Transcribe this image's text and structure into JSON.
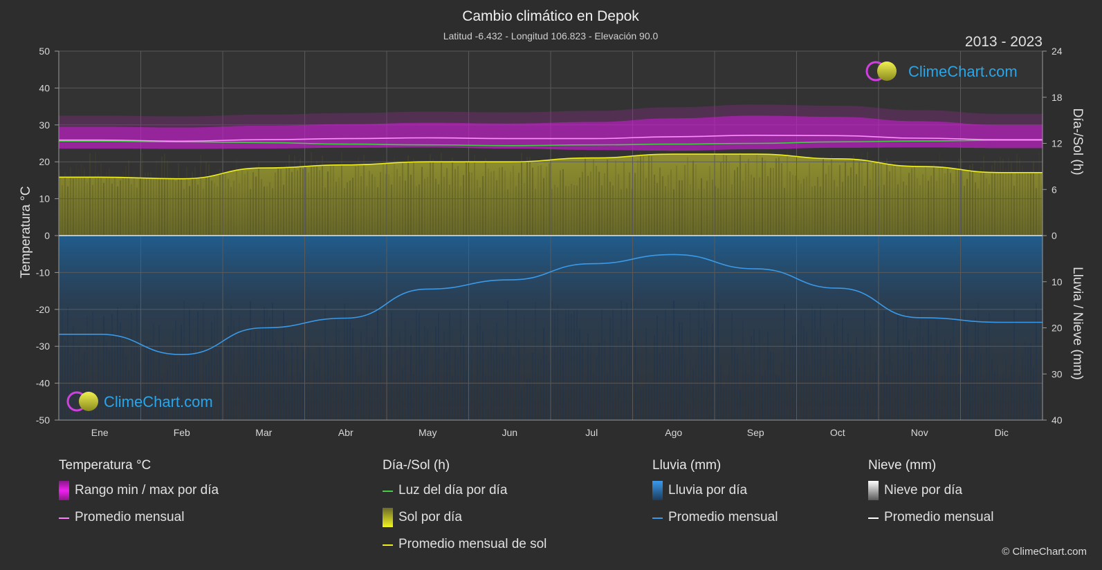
{
  "header": {
    "title": "Cambio climático en Depok",
    "subtitle": "Latitud -6.432 - Longitud 106.823 - Elevación 90.0",
    "period": "2013 - 2023"
  },
  "brand": {
    "name": "ClimeChart.com",
    "copyright": "© ClimeChart.com"
  },
  "colors": {
    "background": "#2d2d2d",
    "temp_range": "#e020e0",
    "temp_avg": "#ff80ff",
    "daylight": "#40d040",
    "sun_fill": "#c8c832",
    "sun_avg": "#f0f020",
    "rain_fill": "#2a7ab8",
    "rain_avg": "#3a9ae8",
    "snow": "#ffffff"
  },
  "chart_data": {
    "type": "area",
    "months": [
      "Ene",
      "Feb",
      "Mar",
      "Abr",
      "May",
      "Jun",
      "Jul",
      "Ago",
      "Sep",
      "Oct",
      "Nov",
      "Dic"
    ],
    "y_left": {
      "label": "Temperatura °C",
      "range": [
        -50,
        50
      ],
      "ticks": [
        50,
        40,
        30,
        20,
        10,
        0,
        -10,
        -20,
        -30,
        -40,
        -50
      ]
    },
    "y_right_top": {
      "label": "Día-/Sol (h)",
      "range": [
        0,
        24
      ],
      "ticks": [
        24,
        18,
        12,
        6,
        0
      ]
    },
    "y_right_bottom": {
      "label": "Lluvia / Nieve (mm)",
      "range": [
        0,
        40
      ],
      "ticks": [
        0,
        10,
        20,
        30,
        40
      ]
    },
    "grid": true,
    "series": [
      {
        "name": "Rango min / max por día",
        "kind": "band",
        "unit": "°C",
        "max": [
          29.5,
          29.3,
          29.8,
          30.2,
          30.6,
          30.4,
          30.8,
          31.8,
          32.5,
          32.2,
          31.0,
          30.0
        ],
        "min": [
          23.6,
          23.5,
          23.6,
          23.8,
          23.9,
          23.6,
          23.2,
          23.0,
          23.4,
          23.8,
          23.9,
          23.7
        ]
      },
      {
        "name": "Promedio mensual",
        "kind": "line",
        "unit": "°C",
        "values": [
          25.9,
          25.6,
          26.0,
          26.3,
          26.5,
          26.3,
          26.3,
          26.8,
          27.2,
          27.1,
          26.4,
          26.0
        ]
      },
      {
        "name": "Luz del día por día",
        "kind": "line",
        "unit": "h",
        "values": [
          12.3,
          12.2,
          12.1,
          11.9,
          11.8,
          11.7,
          11.8,
          11.9,
          12.0,
          12.2,
          12.3,
          12.4
        ]
      },
      {
        "name": "Promedio mensual de sol",
        "kind": "line",
        "unit": "h",
        "values": [
          7.6,
          7.4,
          8.8,
          9.2,
          9.6,
          9.6,
          10.1,
          10.6,
          10.6,
          10.0,
          9.0,
          8.2
        ]
      },
      {
        "name": "Promedio mensual",
        "kind": "line",
        "unit": "mm",
        "values": [
          21.4,
          25.8,
          20.0,
          17.9,
          11.6,
          9.6,
          6.1,
          4.1,
          7.2,
          11.4,
          17.8,
          18.8
        ]
      }
    ]
  },
  "legend": [
    {
      "header": "Temperatura °C",
      "items": [
        {
          "label": "Rango min / max por día",
          "swatch": "box",
          "color": "#e020e0"
        },
        {
          "label": "Promedio mensual",
          "swatch": "line",
          "color": "#ff80ff"
        }
      ]
    },
    {
      "header": "Día-/Sol (h)",
      "items": [
        {
          "label": "Luz del día por día",
          "swatch": "line",
          "color": "#40d040"
        },
        {
          "label": "Sol por día",
          "swatch": "box",
          "color": "#c8c832"
        },
        {
          "label": "Promedio mensual de sol",
          "swatch": "line",
          "color": "#f0f020"
        }
      ]
    },
    {
      "header": "Lluvia (mm)",
      "items": [
        {
          "label": "Lluvia por día",
          "swatch": "box",
          "color": "#2a7ab8"
        },
        {
          "label": "Promedio mensual",
          "swatch": "line",
          "color": "#3a9ae8"
        }
      ]
    },
    {
      "header": "Nieve (mm)",
      "items": [
        {
          "label": "Nieve por día",
          "swatch": "box",
          "color": "#ffffff"
        },
        {
          "label": "Promedio mensual",
          "swatch": "line",
          "color": "#ffffff"
        }
      ]
    }
  ]
}
